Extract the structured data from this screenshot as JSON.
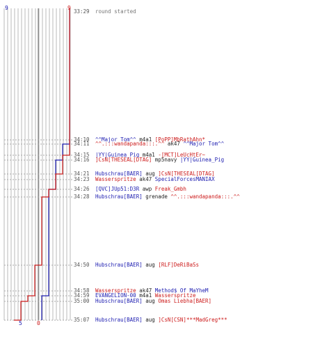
{
  "header": {
    "time": "33:29",
    "note": "round started"
  },
  "scores": {
    "blue_start": "9",
    "red_start": "9",
    "blue_end": "5",
    "red_end": "0"
  },
  "colors": {
    "blue": "#1c1cb0",
    "red": "#cc1a1a",
    "grid": "#b8b8b8"
  },
  "events": [
    {
      "time": "34:10",
      "killer": "^^Major Tom^^",
      "weapon": "m4a1",
      "victim": "[PoPP]MbRathAhn*",
      "killer_team": "blue",
      "victim_team": "red"
    },
    {
      "time": "34:11",
      "killer": "^^.:::wandapanda:::.^^",
      "weapon": "ak47",
      "victim": "^^Major Tom^^",
      "killer_team": "red",
      "victim_team": "blue"
    },
    {
      "time": "34:15",
      "killer": "|YY|Guinea_Pig",
      "weapon": "m4a1",
      "victim": "-[MCT]LeUcHtEr~",
      "killer_team": "blue",
      "victim_team": "red"
    },
    {
      "time": "34:16",
      "killer": "]CsN[THESEAL[DTAG]",
      "weapon": "mp5navy",
      "victim": "|YY|Guinea_Pig",
      "killer_team": "red",
      "victim_team": "blue"
    },
    {
      "time": "34:21",
      "killer": "Hubschrau[BAER]",
      "weapon": "aug",
      "victim": "]CsN[THESEAL[DTAG]",
      "killer_team": "blue",
      "victim_team": "red"
    },
    {
      "time": "34:23",
      "killer": "Wasserspritze",
      "weapon": "ak47",
      "victim": "SpecialForcesMANIAX",
      "killer_team": "red",
      "victim_team": "blue"
    },
    {
      "time": "34:26",
      "killer": "[QVC]JUp51:D3R",
      "weapon": "awp",
      "victim": "Freak_Gmbh",
      "killer_team": "blue",
      "victim_team": "red"
    },
    {
      "time": "34:28",
      "killer": "Hubschrau[BAER]",
      "weapon": "grenade",
      "victim": "^^.:::wandapanda:::.^^",
      "killer_team": "blue",
      "victim_team": "red"
    },
    {
      "time": "34:50",
      "killer": "Hubschrau[BAER]",
      "weapon": "aug",
      "victim": "[RLF]DeRiBaSs",
      "killer_team": "blue",
      "victim_team": "red"
    },
    {
      "time": "34:58",
      "killer": "Wasserspritze",
      "weapon": "ak47",
      "victim": "Method$ Of MaYheM",
      "killer_team": "red",
      "victim_team": "blue"
    },
    {
      "time": "34:59",
      "killer": "EVANGELION-00",
      "weapon": "m4a1",
      "victim": "Wasserspritze",
      "killer_team": "blue",
      "victim_team": "red"
    },
    {
      "time": "35:00",
      "killer": "Hubschrau[BAER]",
      "weapon": "aug",
      "victim": "Omas Liebha[BAER]",
      "killer_team": "blue",
      "victim_team": "red"
    },
    {
      "time": "35:07",
      "killer": "Hubschrau[BAER]",
      "weapon": "aug",
      "victim": "]CsN[CSN]***MadGreg***",
      "killer_team": "blue",
      "victim_team": "red"
    }
  ],
  "steps": {
    "blue": [
      9,
      9,
      8,
      8,
      7,
      7,
      7,
      6,
      6,
      6,
      6,
      5,
      5,
      5,
      5
    ],
    "red": [
      9,
      9,
      9,
      8,
      8,
      7,
      7,
      6,
      5,
      4,
      4,
      3,
      2,
      1,
      0
    ]
  }
}
